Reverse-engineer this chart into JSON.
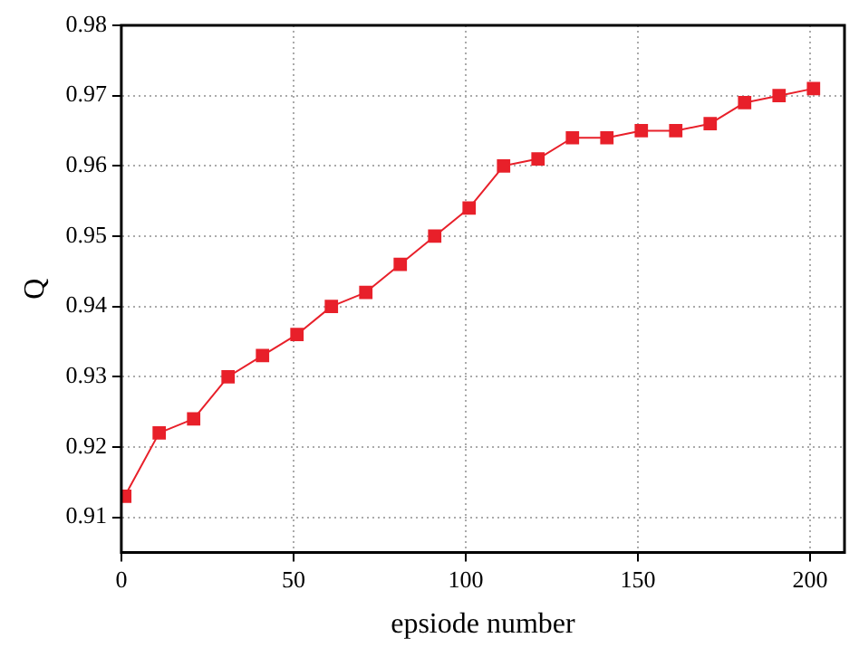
{
  "chart_data": {
    "type": "line",
    "xlabel": "epsiode number",
    "ylabel": "Q",
    "x": [
      1,
      11,
      21,
      31,
      41,
      51,
      61,
      71,
      81,
      91,
      101,
      111,
      121,
      131,
      141,
      151,
      161,
      171,
      181,
      191,
      201
    ],
    "series": [
      {
        "color": "#e8202a",
        "values": [
          0.913,
          0.922,
          0.924,
          0.93,
          0.933,
          0.936,
          0.94,
          0.942,
          0.946,
          0.95,
          0.954,
          0.96,
          0.961,
          0.964,
          0.964,
          0.965,
          0.965,
          0.966,
          0.969,
          0.97,
          0.971
        ]
      }
    ],
    "xlim": [
      0,
      210
    ],
    "xticks": [
      0,
      50,
      100,
      150,
      200
    ],
    "ylim": [
      0.905,
      0.98
    ],
    "yticks": [
      0.91,
      0.92,
      0.93,
      0.94,
      0.95,
      0.96,
      0.97,
      0.98
    ],
    "grid": true,
    "legend": false,
    "marker": "square",
    "line_style": "solid"
  }
}
